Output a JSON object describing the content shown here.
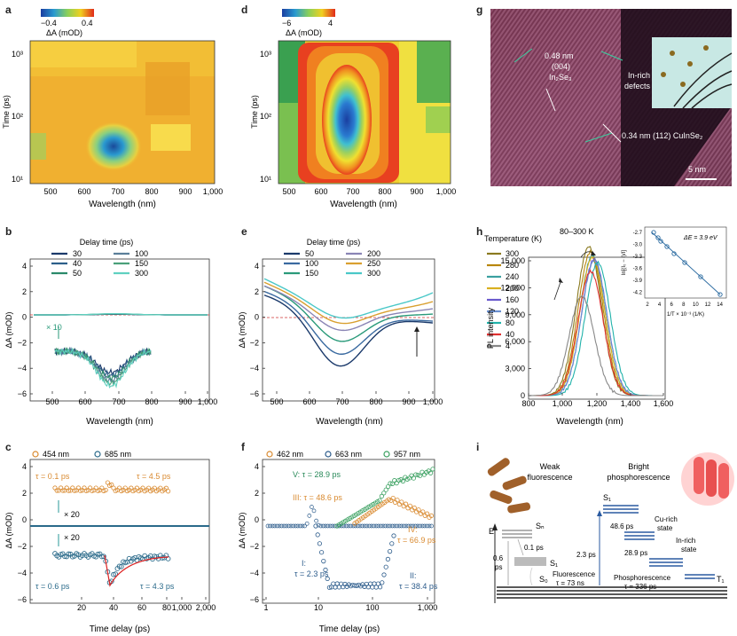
{
  "figure": {
    "panel_letters": [
      "a",
      "d",
      "g",
      "b",
      "e",
      "h",
      "c",
      "f",
      "i"
    ]
  },
  "panel_a": {
    "colorbar_min": "−0.4",
    "colorbar_max": "0.4",
    "colorbar_label": "ΔA (mOD)",
    "xlabel": "Wavelength (nm)",
    "ylabel": "Time (ps)",
    "xticks": [
      "500",
      "600",
      "700",
      "800",
      "900",
      "1,000"
    ],
    "yticks": [
      "10³",
      "10²",
      "10¹"
    ]
  },
  "panel_d": {
    "colorbar_min": "−6",
    "colorbar_max": "4",
    "colorbar_label": "ΔA (mOD)",
    "xlabel": "Wavelength (nm)",
    "ylabel": "Time (ps)",
    "xticks": [
      "500",
      "600",
      "700",
      "800",
      "900",
      "1,000"
    ],
    "yticks": [
      "10³",
      "10²",
      "10¹"
    ]
  },
  "panel_g": {
    "label_a1": "0.48 nm",
    "label_a2": "(004)",
    "label_a3": "In₂Se₃",
    "label_b1": "In-rich",
    "label_b2": "defects",
    "label_c": "0.34 nm (112) CuInSe₂",
    "scalebar": "5 nm"
  },
  "panel_b": {
    "legend_title": "Delay time (ps)",
    "legend": [
      "30",
      "40",
      "50",
      "100",
      "150",
      "300"
    ],
    "legend_colors": [
      "#1b3a6b",
      "#2d5f8a",
      "#2a8a6a",
      "#5a7f9a",
      "#4aa07a",
      "#5fd0c0"
    ],
    "scale_note": "× 10",
    "xlabel": "Wavelength (nm)",
    "ylabel": "ΔA (mOD)",
    "xticks": [
      "500",
      "600",
      "700",
      "800",
      "900",
      "1,000"
    ],
    "yticks": [
      "4",
      "2",
      "0",
      "−2",
      "−4",
      "−6"
    ]
  },
  "panel_e": {
    "legend_title": "Delay time (ps)",
    "legend": [
      "50",
      "100",
      "150",
      "200",
      "250",
      "300"
    ],
    "legend_colors": [
      "#1b3a6b",
      "#3a6aa0",
      "#2a9a7a",
      "#8a85b5",
      "#d9a030",
      "#4ac8c8"
    ],
    "xlabel": "Wavelength (nm)",
    "ylabel": "ΔA (mOD)",
    "xticks": [
      "500",
      "600",
      "700",
      "800",
      "900",
      "1,000"
    ],
    "yticks": [
      "4",
      "2",
      "0",
      "−2",
      "−4",
      "−6"
    ]
  },
  "panel_h": {
    "legend_title": "Temperature (K)",
    "legend": [
      "300",
      "280",
      "240",
      "200",
      "160",
      "120",
      "80",
      "40",
      "4"
    ],
    "legend_colors": [
      "#8a7a20",
      "#b8860b",
      "#3aa0a0",
      "#d9b020",
      "#6a5acd",
      "#6a8fcf",
      "#20b2aa",
      "#e03030",
      "#888888"
    ],
    "range_label": "80–300 K",
    "xlabel": "Wavelength (nm)",
    "ylabel": "PL intensity",
    "xticks": [
      "800",
      "1,000",
      "1,200",
      "1,400",
      "1,600"
    ],
    "yticks": [
      "15,000",
      "12,000",
      "9,000",
      "6,000",
      "3,000",
      "0"
    ],
    "inset": {
      "ylabel": "ln[(I₀ − I)/I]",
      "xlabel": "1/T × 10⁻³ (1/K)",
      "yticks": [
        "-2.7",
        "-3.0",
        "-3.3",
        "-3.6",
        "-3.9",
        "-4.2"
      ],
      "xticks": [
        "2",
        "4",
        "6",
        "8",
        "10",
        "12",
        "14"
      ],
      "annotation": "ΔE = 3.9 eV"
    }
  },
  "panel_c": {
    "legend": [
      "454 nm",
      "685 nm"
    ],
    "legend_colors": [
      "#d98a30",
      "#2a6a8a"
    ],
    "tau1": "τ = 0.1 ps",
    "tau2": "τ = 4.5 ps",
    "tau3": "τ = 0.6 ps",
    "tau4": "τ = 4.3 ps",
    "scale1": "× 20",
    "scale2": "× 20",
    "xlabel": "Time delay (ps)",
    "ylabel": "ΔA (mOD)",
    "xticks": [
      "20",
      "40",
      "60",
      "80",
      "1,000",
      "2,000"
    ],
    "yticks": [
      "4",
      "2",
      "0",
      "−2",
      "−4",
      "−6"
    ]
  },
  "panel_f": {
    "legend": [
      "462 nm",
      "663 nm",
      "957 nm"
    ],
    "legend_colors": [
      "#d98a30",
      "#2a5a8a",
      "#3aa060"
    ],
    "lbl_V": "V: τ = 28.9 ps",
    "lbl_III": "III: τ = 48.6 ps",
    "lbl_IV": "IV:",
    "lbl_IV2": "τ = 66.9 ps",
    "lbl_I": "I:",
    "lbl_I2": "τ = 2.3 ps",
    "lbl_II": "II:",
    "lbl_II2": "τ = 38.4 ps",
    "xlabel": "Time delay (ps)",
    "ylabel": "ΔA (mOD)",
    "xticks": [
      "1",
      "10",
      "100",
      "1,000"
    ],
    "yticks": [
      "4",
      "2",
      "0",
      "−2",
      "−4",
      "−6"
    ]
  },
  "panel_i": {
    "weak": [
      "Weak",
      "fluorescence"
    ],
    "bright": [
      "Bright",
      "phosphorescence"
    ],
    "Sn": "Sₙ",
    "S1": "S₁",
    "S1b": "S₁",
    "S0": "S₀",
    "T1": "T₁",
    "E": "E",
    "t_01": "0.1 ps",
    "t_06": [
      "0.6",
      "ps"
    ],
    "t_23": "2.3 ps",
    "t_486": "48.6 ps",
    "t_289": "28.9 ps",
    "cu_rich": [
      "Cu-rich",
      "state"
    ],
    "in_rich": [
      "In-rich",
      "state"
    ],
    "fluor": "Fluorescence",
    "fluor_t": "τ = 73 ns",
    "phos": "Phosphorescence",
    "phos_t": "τ = 336 ps"
  }
}
